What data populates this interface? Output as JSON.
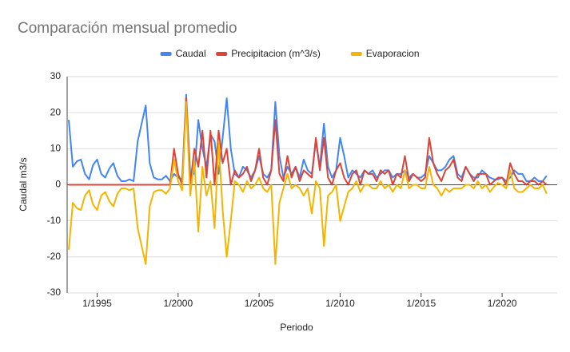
{
  "chart_data": {
    "type": "line",
    "title": "Comparación mensual promedio",
    "x_label": "Periodo",
    "y_label": "Caudal m3/s",
    "legend": "top",
    "grid": true,
    "xlim": [
      1993.15,
      2023.4
    ],
    "ylim": [
      -30,
      30
    ],
    "yticks": [
      -30,
      -20,
      -10,
      0,
      10,
      20,
      30
    ],
    "xticks": [
      {
        "value": 1995,
        "label": "1/1995"
      },
      {
        "value": 2000,
        "label": "1/2000"
      },
      {
        "value": 2005,
        "label": "1/2005"
      },
      {
        "value": 2010,
        "label": "1/2010"
      },
      {
        "value": 2015,
        "label": "1/2015"
      },
      {
        "value": 2020,
        "label": "1/2020"
      }
    ],
    "x": [
      1993.25,
      1993.5,
      1993.75,
      1994,
      1994.25,
      1994.5,
      1994.75,
      1995,
      1995.25,
      1995.5,
      1995.75,
      1996,
      1996.25,
      1996.5,
      1996.75,
      1997,
      1997.25,
      1997.5,
      1997.75,
      1998,
      1998.25,
      1998.5,
      1998.75,
      1999,
      1999.25,
      1999.5,
      1999.75,
      2000,
      2000.25,
      2000.5,
      2000.75,
      2001,
      2001.25,
      2001.5,
      2001.75,
      2002,
      2002.25,
      2002.5,
      2002.75,
      2003,
      2003.25,
      2003.5,
      2003.75,
      2004,
      2004.25,
      2004.5,
      2004.75,
      2005,
      2005.25,
      2005.5,
      2005.75,
      2006,
      2006.25,
      2006.5,
      2006.75,
      2007,
      2007.25,
      2007.5,
      2007.75,
      2008,
      2008.25,
      2008.5,
      2008.75,
      2009,
      2009.25,
      2009.5,
      2009.75,
      2010,
      2010.25,
      2010.5,
      2010.75,
      2011,
      2011.25,
      2011.5,
      2011.75,
      2012,
      2012.25,
      2012.5,
      2012.75,
      2013,
      2013.25,
      2013.5,
      2013.75,
      2014,
      2014.25,
      2014.5,
      2014.75,
      2015,
      2015.25,
      2015.5,
      2015.75,
      2016,
      2016.25,
      2016.5,
      2016.75,
      2017,
      2017.25,
      2017.5,
      2017.75,
      2018,
      2018.25,
      2018.5,
      2018.75,
      2019,
      2019.25,
      2019.5,
      2019.75,
      2020,
      2020.25,
      2020.5,
      2020.75,
      2021,
      2021.25,
      2021.5,
      2021.75,
      2022,
      2022.25,
      2022.5,
      2022.75
    ],
    "series": [
      {
        "name": "Caudal",
        "color": "#4285f4",
        "values": [
          18,
          5,
          6.5,
          7,
          3,
          1.5,
          5.5,
          7,
          3,
          2,
          4.5,
          6,
          2.5,
          1,
          1,
          1.5,
          1,
          12,
          17,
          22,
          6,
          2,
          1.5,
          1.5,
          2.5,
          1,
          3,
          2,
          1.5,
          25,
          3,
          3,
          18,
          10,
          5,
          14,
          12,
          3,
          13,
          24,
          10,
          3,
          2,
          5,
          4,
          2,
          4,
          8,
          3,
          2,
          4,
          23,
          8,
          2,
          5,
          3,
          5,
          2,
          7,
          4,
          3,
          12,
          5,
          17,
          5,
          2,
          4,
          13,
          8,
          2,
          4,
          3,
          2,
          4,
          3,
          4,
          2,
          3,
          4,
          4,
          2,
          3,
          3,
          4,
          2,
          3,
          2,
          2,
          3,
          8,
          6,
          4,
          4,
          5,
          7,
          8,
          3,
          2,
          5,
          3,
          2,
          2,
          4,
          3,
          2,
          1.5,
          1.5,
          2,
          1,
          2,
          4,
          3,
          3,
          1,
          1,
          2,
          1,
          1,
          2.5
        ]
      },
      {
        "name": "Precipitacion (m^3/s)",
        "color": "#db4437",
        "values": [
          0,
          0,
          0,
          0,
          0,
          0,
          0,
          0,
          0,
          0,
          0,
          0,
          0,
          0,
          0,
          0,
          0,
          0,
          0,
          0,
          0,
          0,
          0,
          0,
          0,
          0,
          10,
          3,
          0,
          24,
          0,
          10,
          5,
          15,
          2,
          15,
          0,
          15,
          6,
          10,
          0,
          4,
          2,
          3,
          5,
          1,
          4,
          10,
          2,
          0,
          4,
          18,
          3,
          1,
          8,
          2,
          5,
          1,
          4,
          3,
          2,
          13,
          4,
          13,
          2,
          0,
          4,
          6,
          2,
          0,
          3,
          4,
          0,
          4,
          3,
          3,
          1,
          4,
          3,
          4,
          0,
          3,
          2,
          8,
          1,
          3,
          2,
          1,
          2,
          13,
          6,
          3,
          1,
          4,
          5,
          7,
          2,
          1,
          5,
          3,
          1,
          3,
          3,
          3,
          0,
          1,
          2,
          2,
          0,
          6,
          3,
          1,
          1,
          0,
          1,
          1,
          0,
          1,
          0
        ]
      },
      {
        "name": "Evaporacion",
        "color": "#f4b400",
        "values": [
          -18,
          -5,
          -6.5,
          -7,
          -3,
          -1.5,
          -5.5,
          -7,
          -3,
          -2,
          -4.5,
          -6,
          -2.5,
          -1,
          -1,
          -1.5,
          -1,
          -12,
          -17,
          -22,
          -6,
          -2,
          -1.5,
          -1.5,
          -2.5,
          -1,
          7,
          1,
          -1.5,
          23,
          -3,
          7,
          -13,
          5,
          -3,
          1,
          -12,
          12,
          -7,
          -20,
          -10,
          1,
          0,
          -2,
          1,
          -1,
          0,
          2,
          -1,
          -2,
          0,
          -22,
          -5,
          -1,
          3,
          -1,
          0,
          -1,
          -3,
          -1,
          -8,
          1,
          -1,
          -17,
          -3,
          -2,
          0,
          -10,
          -6,
          -2,
          -1,
          1,
          -2,
          0,
          0,
          -1,
          -1,
          1,
          -1,
          0,
          -2,
          0,
          -1,
          4,
          -1,
          0,
          0,
          -1,
          -1,
          5,
          0,
          -1,
          -3,
          -1,
          -2,
          -1,
          -1,
          -1,
          0,
          0,
          -1,
          1,
          -1,
          0,
          -2,
          -0.5,
          0.5,
          0,
          -1,
          4,
          -1,
          -2,
          -2,
          -1,
          0,
          -1,
          -1,
          0,
          -2.5
        ]
      }
    ]
  }
}
